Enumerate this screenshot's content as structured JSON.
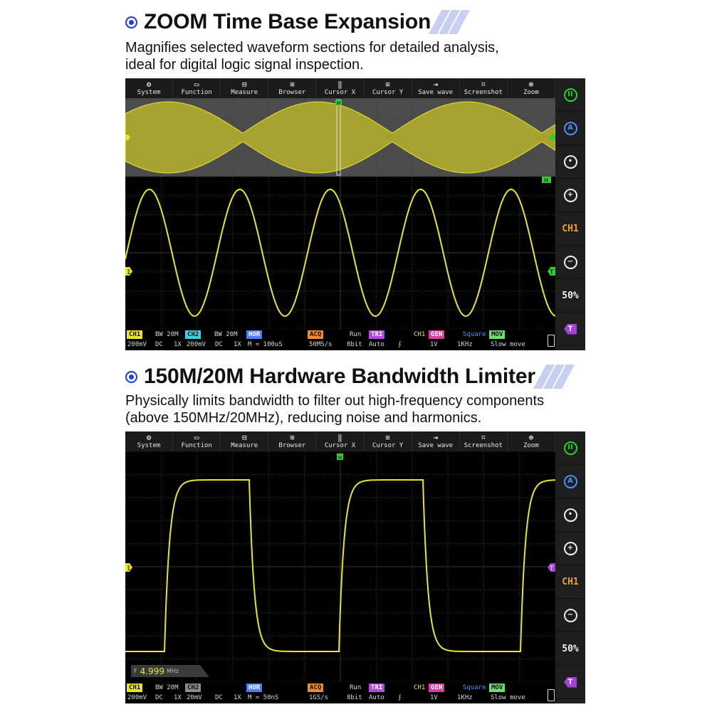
{
  "sections": [
    {
      "title": "ZOOM Time Base Expansion",
      "description": [
        "Magnifies selected waveform sections for detailed analysis,",
        "ideal for digital logic signal inspection."
      ]
    },
    {
      "title": "150M/20M Hardware Bandwidth Limiter",
      "description": [
        "Physically limits bandwidth to filter out high-frequency components",
        "(above 150MHz/20MHz), reducing noise and harmonics."
      ]
    }
  ],
  "toolbar": [
    {
      "label": "System",
      "icon": "gear-icon"
    },
    {
      "label": "Function",
      "icon": "function-icon"
    },
    {
      "label": "Measure",
      "icon": "measure-icon"
    },
    {
      "label": "Browser",
      "icon": "browser-icon"
    },
    {
      "label": "Cursor X",
      "icon": "cursor-x-icon"
    },
    {
      "label": "Cursor Y",
      "icon": "cursor-y-icon"
    },
    {
      "label": "Save wave",
      "icon": "save-wave-icon"
    },
    {
      "label": "Screenshot",
      "icon": "screenshot-icon"
    },
    {
      "label": "Zoom",
      "icon": "zoom-icon"
    }
  ],
  "side_panel": {
    "run_icon": "pause-icon",
    "auto_icon": "auto-icon",
    "select_icon": "select-icon",
    "plus_icon": "plus-icon",
    "channel": "CH1",
    "minus_icon": "minus-icon",
    "percent": "50%",
    "trigger_icon": "trigger-tag-icon"
  },
  "scope1": {
    "status": {
      "ch1": "CH1",
      "bw1": "BW 20M",
      "ch2": "CH2",
      "bw2": "BW 20M",
      "hor": "HOR",
      "acq": "ACQ",
      "run": "Run",
      "tri": "TRI",
      "tri_src": "CH1",
      "gen": "GEN",
      "gen_wave": "Square",
      "mov": "MOV",
      "ch1_scale": "200mV",
      "ch1_coupling": "DC",
      "ch1_probe": "1X",
      "ch2_scale": "200mV",
      "ch2_coupling": "DC",
      "ch2_probe": "1X",
      "timebase": "M = 100uS",
      "sample_rate": "50MS/s",
      "bits": "8bit",
      "trig_mode": "Auto",
      "trig_edge": "⨍",
      "gen_amp": "1V",
      "gen_freq": "1KHz",
      "move": "Slow move"
    },
    "markers": {
      "ch1": "1",
      "trig": "T",
      "h": "H"
    }
  },
  "scope2": {
    "status": {
      "ch1": "CH1",
      "bw1": "BW 20M",
      "ch2": "CH2",
      "hor": "HOR",
      "acq": "ACQ",
      "run": "Run",
      "tri": "TRI",
      "tri_src": "CH1",
      "gen": "GEN",
      "gen_wave": "Square",
      "mov": "MOV",
      "ch1_scale": "200mV",
      "ch1_coupling": "DC",
      "ch1_probe": "1X",
      "ch2_scale": "20mV",
      "ch2_coupling": "DC",
      "ch2_probe": "1X",
      "timebase": "M = 50nS",
      "sample_rate": "1GS/s",
      "bits": "8bit",
      "trig_mode": "Auto",
      "trig_edge": "⨍",
      "gen_amp": "1V",
      "gen_freq": "1KHz",
      "move": "Slow move"
    },
    "frequency": {
      "prefix": "F",
      "value": "4.999",
      "unit": "MHz"
    },
    "markers": {
      "ch1": "1",
      "trig": "T",
      "h": "H"
    }
  },
  "colors": {
    "trace": "#e9e62a",
    "accent_blue": "#1f3fe0",
    "grid": "#3a3a3a"
  }
}
